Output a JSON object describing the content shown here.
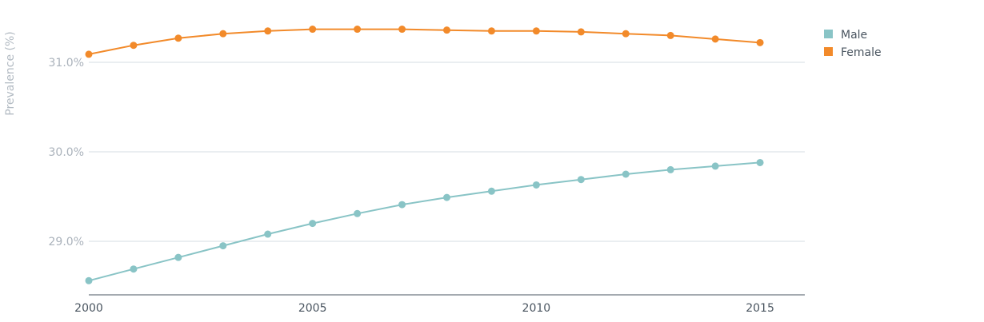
{
  "chart_data": {
    "type": "line",
    "title": "",
    "xlabel": "",
    "ylabel": "Prevalence (%)",
    "x": [
      2000,
      2001,
      2002,
      2003,
      2004,
      2005,
      2006,
      2007,
      2008,
      2009,
      2010,
      2011,
      2012,
      2013,
      2014,
      2015
    ],
    "xticks": [
      "2000",
      "2005",
      "2010",
      "2015"
    ],
    "yticks": [
      "29.0%",
      "30.0%",
      "31.0%"
    ],
    "ylim": [
      28.4,
      31.6
    ],
    "xlim": [
      2000,
      2016
    ],
    "grid": true,
    "legend_position": "top-right",
    "series": [
      {
        "name": "Male",
        "color": "#89c4c6",
        "values": [
          28.56,
          28.69,
          28.82,
          28.95,
          29.08,
          29.2,
          29.31,
          29.41,
          29.49,
          29.56,
          29.63,
          29.69,
          29.75,
          29.8,
          29.84,
          29.88
        ]
      },
      {
        "name": "Female",
        "color": "#f28a2a",
        "values": [
          31.09,
          31.19,
          31.27,
          31.32,
          31.35,
          31.37,
          31.37,
          31.37,
          31.36,
          31.35,
          31.35,
          31.34,
          31.32,
          31.3,
          31.26,
          31.22
        ]
      }
    ]
  }
}
